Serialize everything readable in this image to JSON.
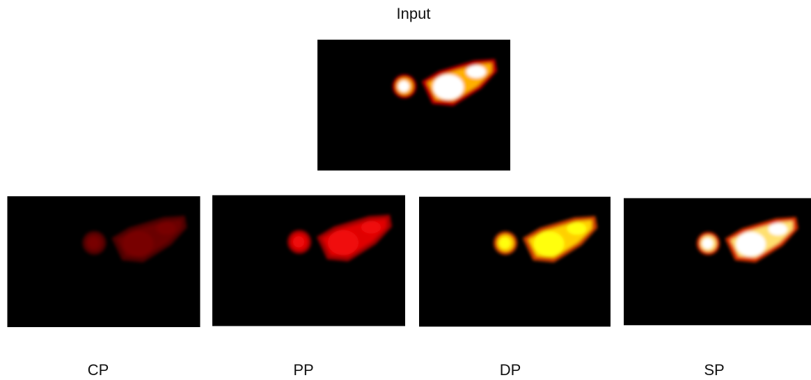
{
  "title": "Input",
  "panels": [
    "CP",
    "PP",
    "DP",
    "SP"
  ]
}
